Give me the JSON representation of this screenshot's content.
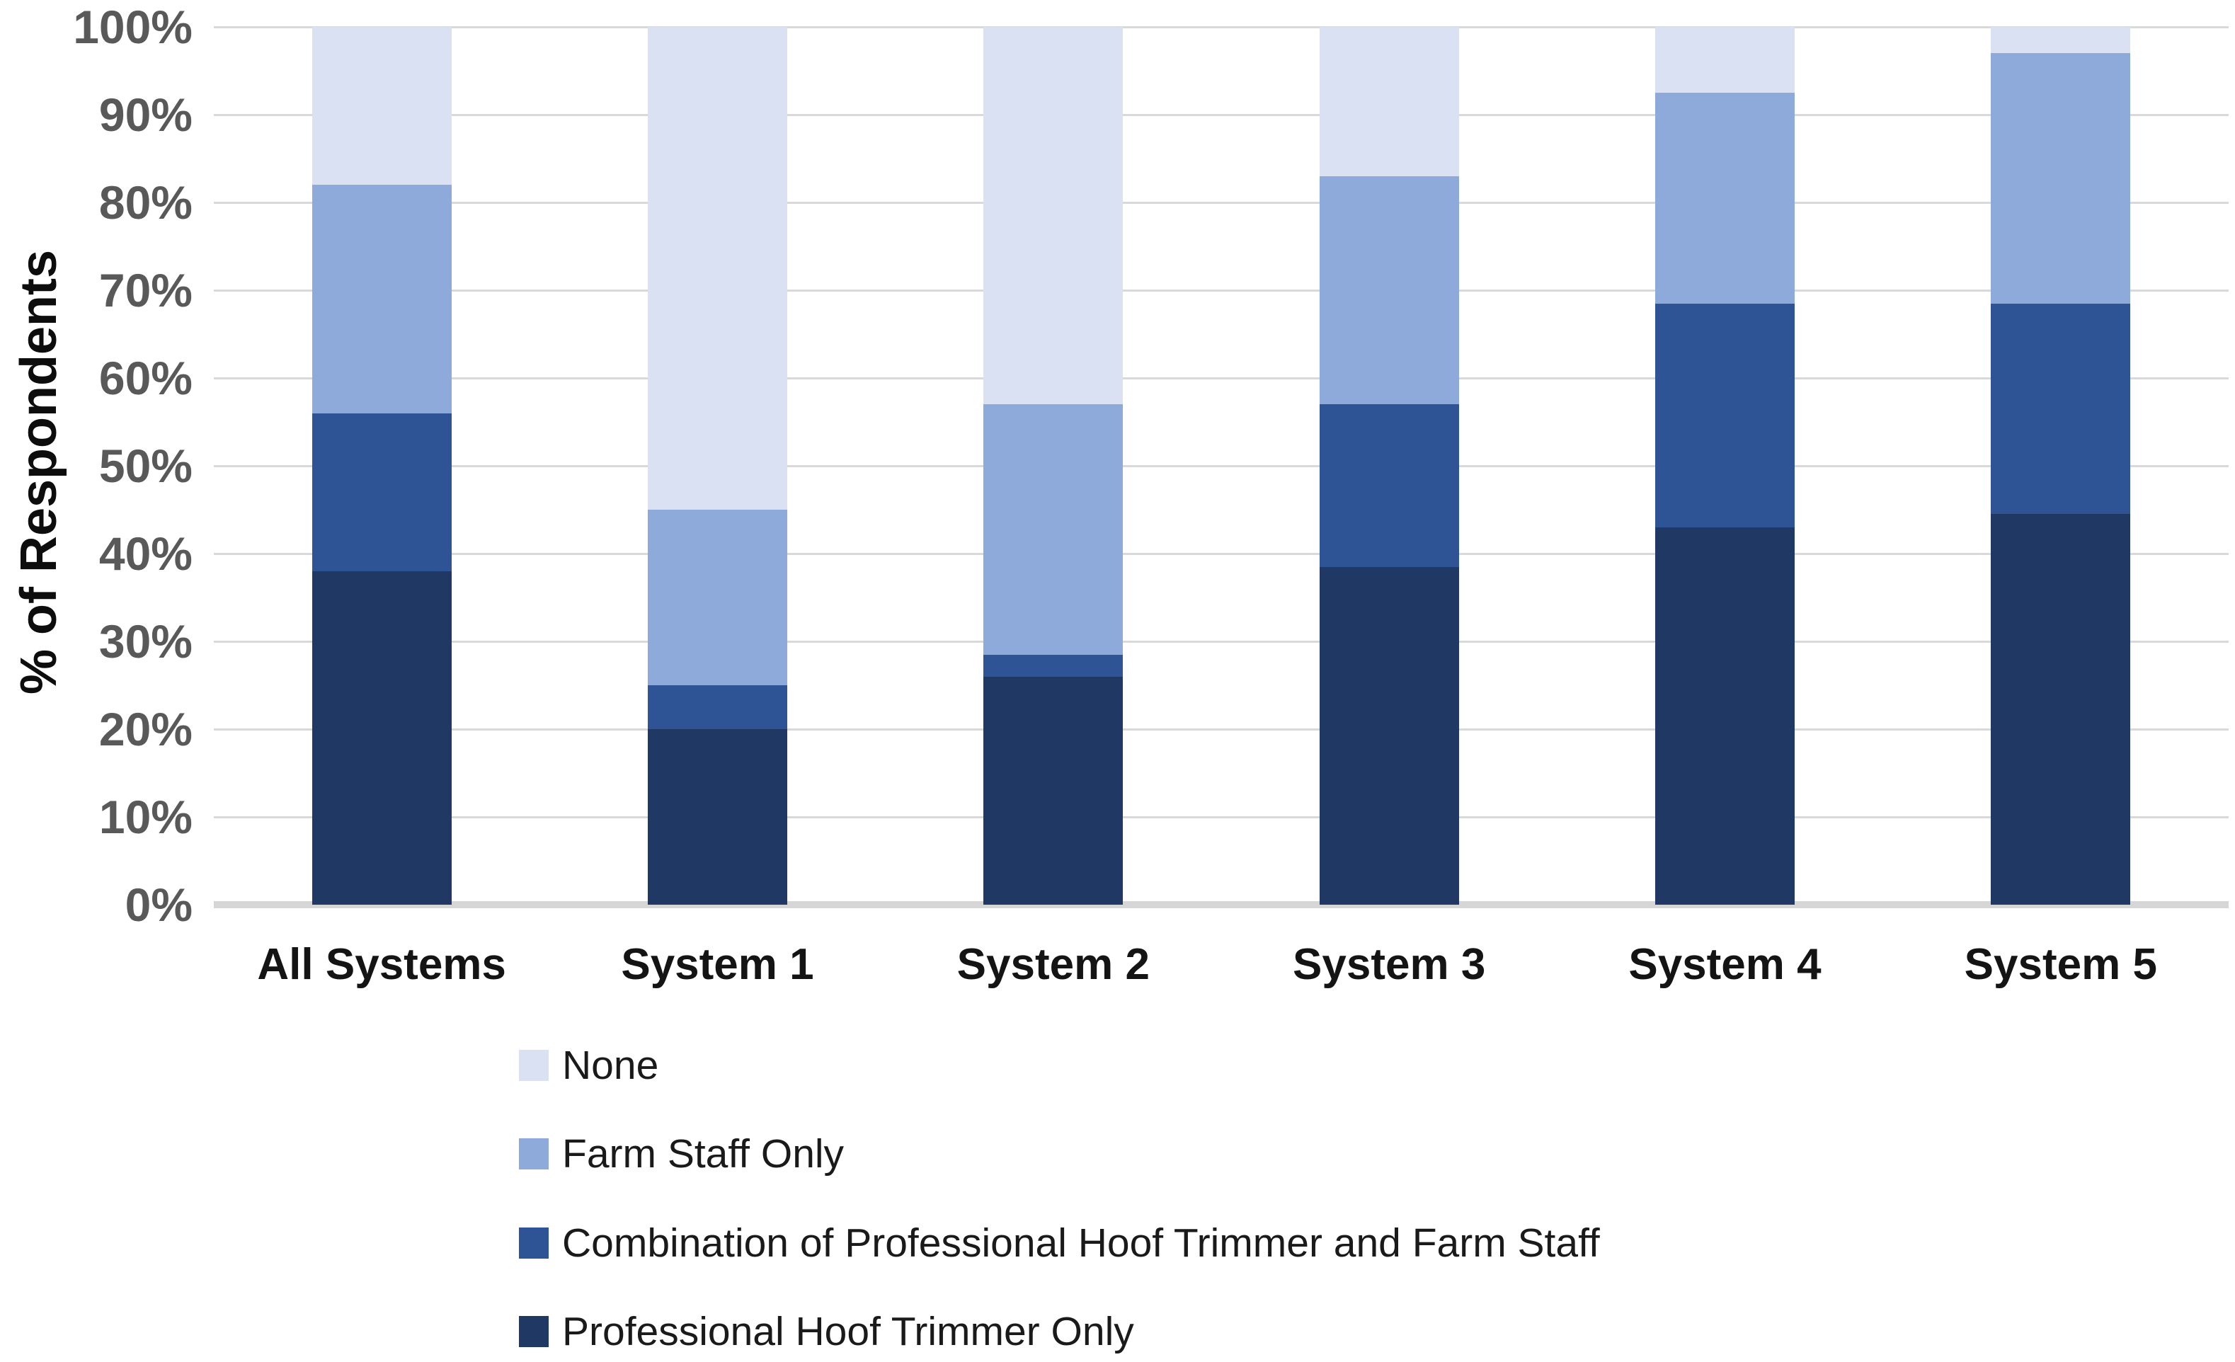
{
  "chart_data": {
    "type": "bar",
    "stacked": true,
    "title": "",
    "ylabel": "% of Respondents",
    "xlabel": "",
    "ylim": [
      0,
      100
    ],
    "grid": true,
    "legend_position": "bottom-left",
    "categories": [
      "All Systems",
      "System 1",
      "System 2",
      "System 3",
      "System 4",
      "System 5"
    ],
    "series": [
      {
        "name": "Professional Hoof Trimmer Only",
        "color": "#1F3864",
        "values": [
          38,
          20,
          26,
          38.5,
          43,
          44.5
        ]
      },
      {
        "name": "Combination of Professional Hoof Trimmer and Farm Staff",
        "color": "#2F5496",
        "values": [
          18,
          5,
          2.5,
          18.5,
          25.5,
          24
        ]
      },
      {
        "name": "Farm Staff Only",
        "color": "#8EAADB",
        "values": [
          26,
          20,
          28.5,
          26,
          24,
          28.5
        ]
      },
      {
        "name": "None",
        "color": "#D9E1F2",
        "values": [
          18,
          55,
          43,
          17,
          7.5,
          3
        ]
      }
    ],
    "stack_order": "bottom-to-top",
    "legend_order": [
      "None",
      "Farm Staff Only",
      "Combination of Professional Hoof Trimmer and Farm Staff",
      "Professional Hoof Trimmer Only"
    ],
    "y_axis": {
      "ticks": [
        {
          "label": "100%",
          "value": 100
        },
        {
          "label": "90%",
          "value": 90
        },
        {
          "label": "80%",
          "value": 80
        },
        {
          "label": "70%",
          "value": 70
        },
        {
          "label": "60%",
          "value": 60
        },
        {
          "label": "50%",
          "value": 50
        },
        {
          "label": "40%",
          "value": 40
        },
        {
          "label": "30%",
          "value": 30
        },
        {
          "label": "20%",
          "value": 20
        },
        {
          "label": "10%",
          "value": 10
        },
        {
          "label": "0%",
          "value": 0
        }
      ]
    },
    "colors": {
      "gridline": "#d9d9d9",
      "axis_line": "#d6d6d6",
      "tick_label": "#595959",
      "category_label": "#141414",
      "axis_title": "#0d0d0d",
      "legend_text": "#1a1a1a",
      "background": "#ffffff"
    }
  }
}
